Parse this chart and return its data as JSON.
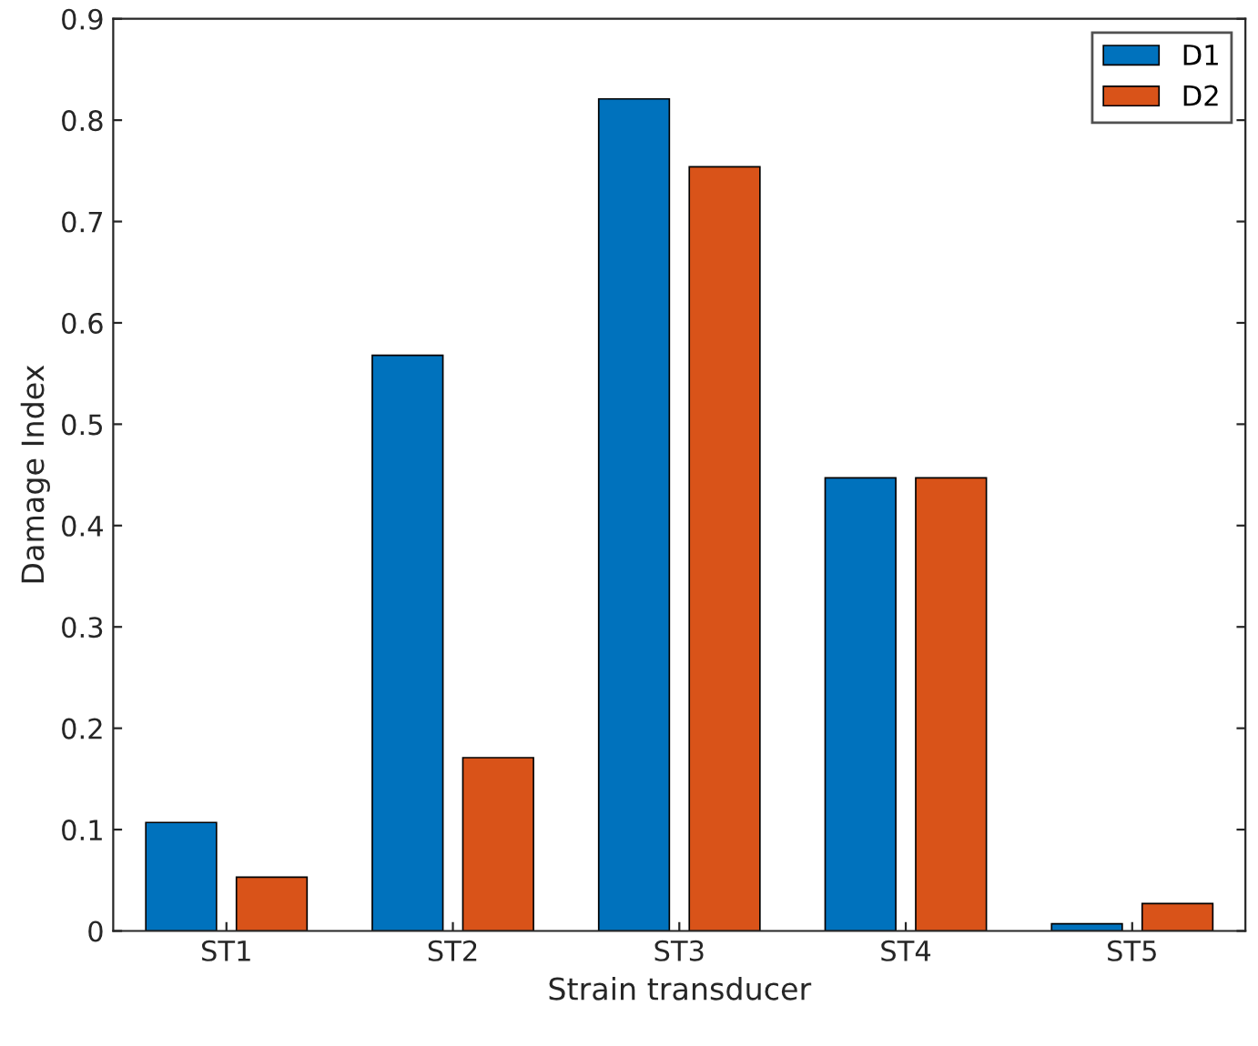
{
  "chart_data": {
    "type": "bar",
    "xlabel": "Strain transducer",
    "ylabel": "Damage Index",
    "categories": [
      "ST1",
      "ST2",
      "ST3",
      "ST4",
      "ST5"
    ],
    "series": [
      {
        "name": "D1",
        "color": "#0072bd",
        "values": [
          0.107,
          0.568,
          0.821,
          0.447,
          0.007
        ]
      },
      {
        "name": "D2",
        "color": "#d95319",
        "values": [
          0.053,
          0.171,
          0.754,
          0.447,
          0.027
        ]
      }
    ],
    "ylim": [
      0,
      0.9
    ],
    "yticks": [
      0,
      0.1,
      0.2,
      0.3,
      0.4,
      0.5,
      0.6,
      0.7,
      0.8,
      0.9
    ],
    "grid": false,
    "legend": "top right"
  }
}
